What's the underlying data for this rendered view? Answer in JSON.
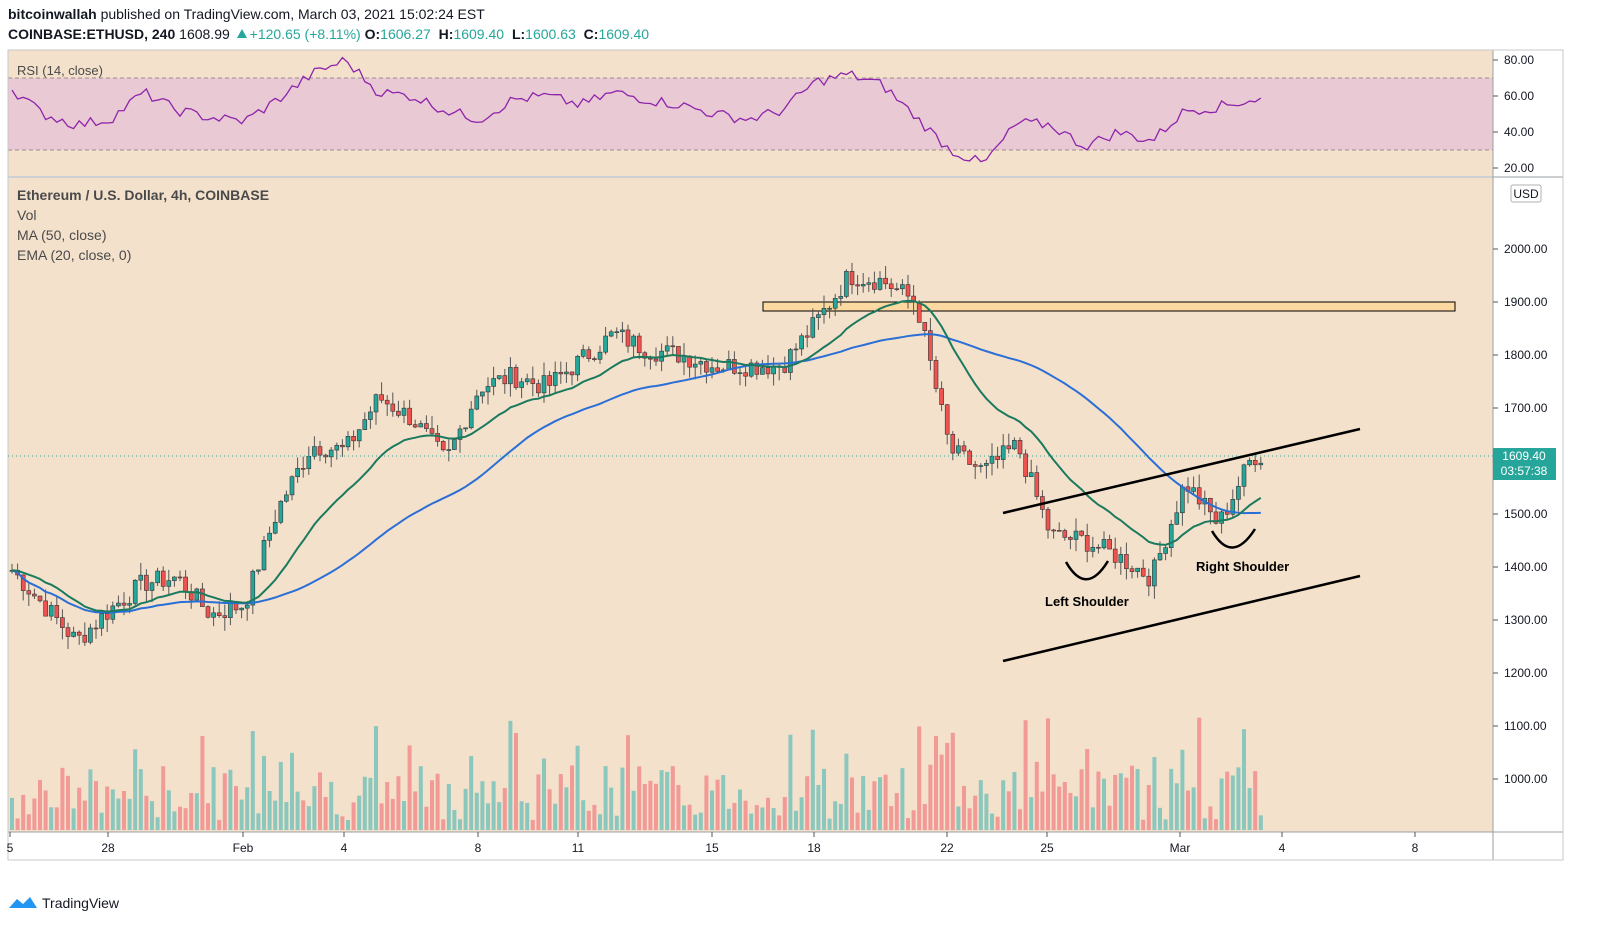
{
  "header": {
    "publisher": "bitcoinwallah",
    "published_text": "published on TradingView.com, March 03, 2021 15:02:24 EST",
    "symbol": "COINBASE:ETHUSD, 240",
    "last": "1608.99",
    "change": "+120.65 (+8.11%)",
    "o_label": "O:",
    "o_value": "1606.27",
    "h_label": "H:",
    "h_value": "1609.40",
    "l_label": "L:",
    "l_value": "1600.63",
    "c_label": "C:",
    "c_value": "1609.40"
  },
  "legend": {
    "title": "Ethereum / U.S. Dollar, 4h, COINBASE",
    "vol": "Vol",
    "ma": "MA (50, close)",
    "ema": "EMA (20, close, 0)",
    "rsi": "RSI (14, close)"
  },
  "price_panel": {
    "currency_badge": "USD",
    "last_price_label": "1609.40",
    "countdown_label": "03:57:38",
    "rsi_ticks": [
      "80.00",
      "60.00",
      "40.00",
      "20.00"
    ]
  },
  "annotations": {
    "left_shoulder": "Left Shoulder",
    "right_shoulder": "Right Shoulder"
  },
  "footer": {
    "brand": "TradingView"
  },
  "colors": {
    "background": "#f4e1cc",
    "up": "#26a69a",
    "down": "#ef5350",
    "ma": "#2a6fd6",
    "ema": "#1b7a5e",
    "rsi_line": "#8e24aa",
    "rsi_band": "#e6c6d3",
    "resistance_box": "#fbd9a0"
  },
  "chart_data": [
    {
      "type": "line",
      "title": "RSI (14, close)",
      "ylim": [
        13,
        86
      ],
      "band": [
        30,
        70
      ],
      "x": [
        "Jan 25",
        "Jan 26",
        "Jan 27",
        "Jan 28",
        "Jan 29",
        "Jan 30",
        "Jan 31",
        "Feb 1",
        "Feb 2",
        "Feb 3",
        "Feb 4",
        "Feb 5",
        "Feb 6",
        "Feb 7",
        "Feb 8",
        "Feb 9",
        "Feb 10",
        "Feb 11",
        "Feb 12",
        "Feb 13",
        "Feb 14",
        "Feb 15",
        "Feb 16",
        "Feb 17",
        "Feb 18",
        "Feb 19",
        "Feb 20",
        "Feb 21",
        "Feb 22",
        "Feb 23",
        "Feb 24",
        "Feb 25",
        "Feb 26",
        "Feb 27",
        "Feb 28",
        "Mar 1",
        "Mar 2",
        "Mar 3"
      ],
      "values": [
        65,
        50,
        44,
        47,
        62,
        52,
        48,
        46,
        58,
        72,
        80,
        62,
        60,
        52,
        47,
        58,
        60,
        55,
        62,
        58,
        55,
        50,
        47,
        52,
        68,
        72,
        66,
        48,
        30,
        22,
        45,
        44,
        32,
        40,
        35,
        52,
        54,
        58
      ]
    },
    {
      "type": "candlestick",
      "title": "Ethereum / U.S. Dollar, 4h, COINBASE",
      "ylim": [
        840,
        2100
      ],
      "yticks": [
        1000,
        1100,
        1200,
        1300,
        1400,
        1500,
        1600,
        1700,
        1800,
        1900,
        2000
      ],
      "x_ticks": [
        "5",
        "28",
        "Feb",
        "4",
        "8",
        "11",
        "15",
        "18",
        "22",
        "25",
        "Mar",
        "4",
        "8"
      ],
      "anchors": [
        {
          "date": "Jan 25",
          "close": 1400
        },
        {
          "date": "Jan 26",
          "close": 1330
        },
        {
          "date": "Jan 27",
          "close": 1260
        },
        {
          "date": "Jan 28",
          "close": 1320
        },
        {
          "date": "Jan 29",
          "close": 1370
        },
        {
          "date": "Jan 30",
          "close": 1380
        },
        {
          "date": "Jan 31",
          "close": 1310
        },
        {
          "date": "Feb 1",
          "close": 1330
        },
        {
          "date": "Feb 2",
          "close": 1510
        },
        {
          "date": "Feb 3",
          "close": 1630
        },
        {
          "date": "Feb 4",
          "close": 1620
        },
        {
          "date": "Feb 5",
          "close": 1720
        },
        {
          "date": "Feb 6",
          "close": 1680
        },
        {
          "date": "Feb 7",
          "close": 1600
        },
        {
          "date": "Feb 8",
          "close": 1740
        },
        {
          "date": "Feb 9",
          "close": 1760
        },
        {
          "date": "Feb 10",
          "close": 1740
        },
        {
          "date": "Feb 11",
          "close": 1790
        },
        {
          "date": "Feb 12",
          "close": 1840
        },
        {
          "date": "Feb 13",
          "close": 1810
        },
        {
          "date": "Feb 14",
          "close": 1800
        },
        {
          "date": "Feb 15",
          "close": 1780
        },
        {
          "date": "Feb 16",
          "close": 1780
        },
        {
          "date": "Feb 17",
          "close": 1780
        },
        {
          "date": "Feb 18",
          "close": 1860
        },
        {
          "date": "Feb 19",
          "close": 1950
        },
        {
          "date": "Feb 20",
          "close": 1940
        },
        {
          "date": "Feb 21",
          "close": 1900
        },
        {
          "date": "Feb 22",
          "close": 1620
        },
        {
          "date": "Feb 23",
          "close": 1580
        },
        {
          "date": "Feb 24",
          "close": 1630
        },
        {
          "date": "Feb 25",
          "close": 1460
        },
        {
          "date": "Feb 26",
          "close": 1450
        },
        {
          "date": "Feb 27",
          "close": 1420
        },
        {
          "date": "Feb 28",
          "close": 1380
        },
        {
          "date": "Mar 1",
          "close": 1560
        },
        {
          "date": "Mar 2",
          "close": 1480
        },
        {
          "date": "Mar 3",
          "close": 1609.4
        }
      ],
      "last_price": 1609.4
    }
  ]
}
